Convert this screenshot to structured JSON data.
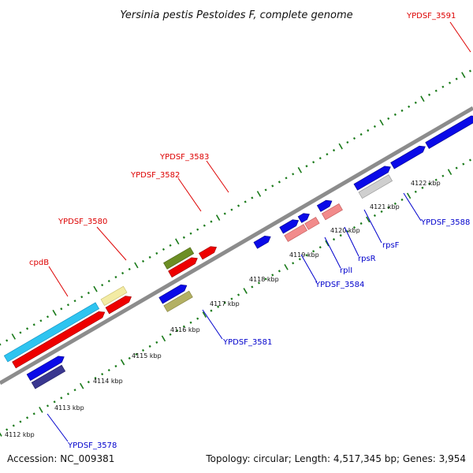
{
  "title": "Yersinia pestis Pestoides F, complete genome",
  "footer": {
    "accession": "Accession: NC_009381",
    "summary": "Topology: circular; Length: 4,517,345 bp; Genes: 3,954"
  },
  "colors": {
    "backbone": "#8c8c8c",
    "tick": "#1a7a1a",
    "top_label": "#dd0000",
    "bottom_label": "#0000cc"
  },
  "ticks": [
    {
      "label": "4112 kbp"
    },
    {
      "label": "4113 kbp"
    },
    {
      "label": "4114 kbp"
    },
    {
      "label": "4115 kbp"
    },
    {
      "label": "4116 kbp"
    },
    {
      "label": "4117 kbp"
    },
    {
      "label": "4118 kbp"
    },
    {
      "label": "4119 kbp"
    },
    {
      "label": "4120 kbp"
    },
    {
      "label": "4121 kbp"
    },
    {
      "label": "4122 kbp"
    }
  ],
  "top_labels": [
    {
      "text": "cpdB"
    },
    {
      "text": "YPDSF_3580"
    },
    {
      "text": "YPDSF_3582"
    },
    {
      "text": "YPDSF_3583"
    },
    {
      "text": "YPDSF_3591"
    }
  ],
  "bottom_labels": [
    {
      "text": "YPDSF_3578"
    },
    {
      "text": "YPDSF_3581"
    },
    {
      "text": "YPDSF_3584"
    },
    {
      "text": "rplI"
    },
    {
      "text": "rpsR"
    },
    {
      "text": "rpsF"
    },
    {
      "text": "YPDSF_3588"
    }
  ]
}
